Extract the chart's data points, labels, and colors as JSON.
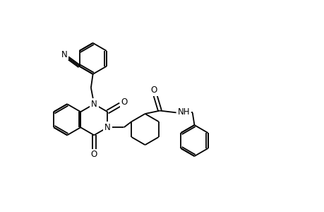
{
  "bg": "#ffffff",
  "lw": 1.3,
  "lw_db": 1.3,
  "figsize": [
    4.6,
    3.0
  ],
  "dpi": 100,
  "xlim": [
    -3.8,
    4.5
  ],
  "ylim": [
    -2.8,
    2.6
  ],
  "r": 0.4
}
